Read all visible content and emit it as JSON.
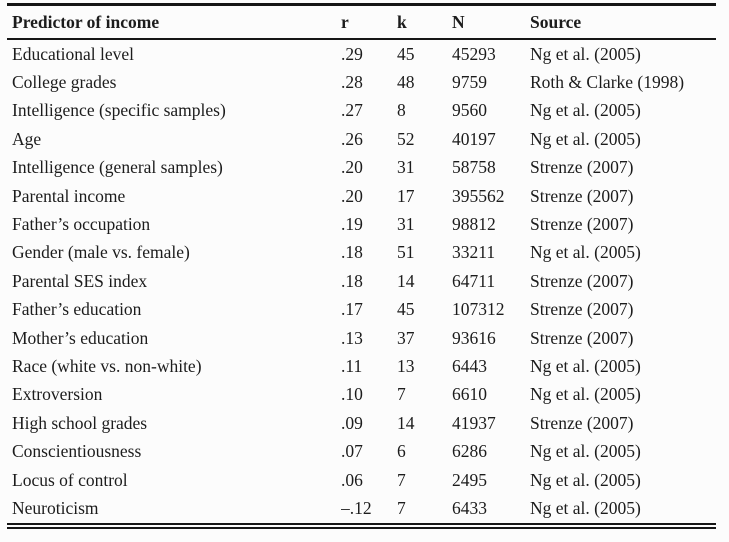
{
  "page": {
    "background": "#fcfcfc",
    "text_color": "#1c1c1c",
    "rule_color": "#161616"
  },
  "table": {
    "columns": [
      "Predictor of income",
      "r",
      "k",
      "N",
      "Source"
    ],
    "rows": [
      [
        "Educational level",
        ".29",
        "45",
        "45293",
        "Ng et al. (2005)"
      ],
      [
        "College grades",
        ".28",
        "48",
        "9759",
        "Roth & Clarke (1998)"
      ],
      [
        "Intelligence (specific samples)",
        ".27",
        "8",
        "9560",
        "Ng et al. (2005)"
      ],
      [
        "Age",
        ".26",
        "52",
        "40197",
        "Ng et al. (2005)"
      ],
      [
        "Intelligence (general samples)",
        ".20",
        "31",
        "58758",
        "Strenze (2007)"
      ],
      [
        "Parental income",
        ".20",
        "17",
        "395562",
        "Strenze (2007)"
      ],
      [
        "Father’s occupation",
        ".19",
        "31",
        "98812",
        "Strenze (2007)"
      ],
      [
        "Gender (male vs. female)",
        ".18",
        "51",
        "33211",
        "Ng et al. (2005)"
      ],
      [
        "Parental SES index",
        ".18",
        "14",
        "64711",
        "Strenze (2007)"
      ],
      [
        "Father’s education",
        ".17",
        "45",
        "107312",
        "Strenze (2007)"
      ],
      [
        "Mother’s education",
        ".13",
        "37",
        "93616",
        "Strenze (2007)"
      ],
      [
        "Race (white vs. non-white)",
        ".11",
        "13",
        "6443",
        "Ng et al. (2005)"
      ],
      [
        "Extroversion",
        ".10",
        "7",
        "6610",
        "Ng et al. (2005)"
      ],
      [
        "High school grades",
        ".09",
        "14",
        "41937",
        "Strenze (2007)"
      ],
      [
        "Conscientiousness",
        ".07",
        "6",
        "6286",
        "Ng et al. (2005)"
      ],
      [
        "Locus of control",
        ".06",
        "7",
        "2495",
        "Ng et al. (2005)"
      ],
      [
        "Neuroticism",
        "–.12",
        "7",
        "6433",
        "Ng et al. (2005)"
      ]
    ]
  }
}
